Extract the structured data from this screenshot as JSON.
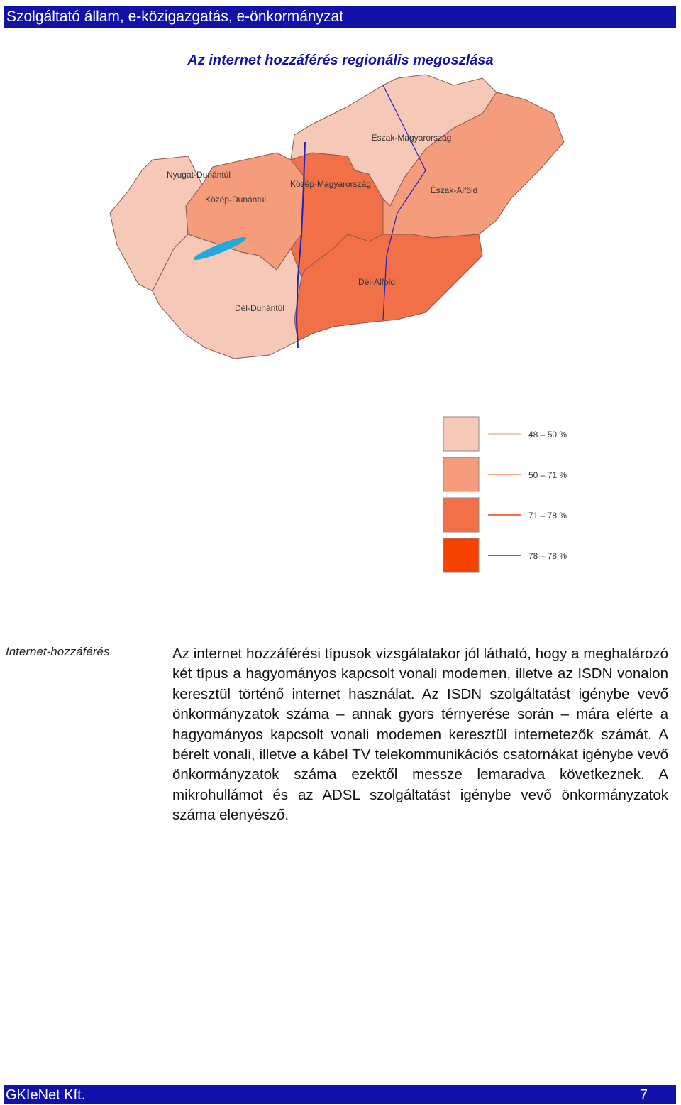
{
  "header": {
    "title": "Szolgáltató állam, e-közigazgatás, e-önkormányzat"
  },
  "map": {
    "title": "Az internet hozzáférés regionális megoszlása",
    "regions": [
      {
        "name": "Nyugat-Dunántúl",
        "color": "#f5c8b8"
      },
      {
        "name": "Közép-Dunántúl",
        "color": "#f59c7c"
      },
      {
        "name": "Dél-Dunántúl",
        "color": "#f5c8b8"
      },
      {
        "name": "Közép-Magyarország",
        "color": "#f27048"
      },
      {
        "name": "Észak-Magyarország",
        "color": "#f5c8b8"
      },
      {
        "name": "Észak-Alföld",
        "color": "#f59c7c"
      },
      {
        "name": "Dél-Alföld",
        "color": "#f27048"
      }
    ],
    "legend": [
      {
        "label": "48 – 50 %",
        "color": "#f5c8b8"
      },
      {
        "label": "50 – 71 %",
        "color": "#f59c7c"
      },
      {
        "label": "71 – 78 %",
        "color": "#f27048"
      },
      {
        "label": "78 – 78 %",
        "color": "#f54200"
      }
    ]
  },
  "section": {
    "label": "Internet-hozzáférés",
    "paragraph": "Az internet hozzáférési típusok vizsgálatakor jól látható, hogy a meghatározó két típus a hagyományos kapcsolt vonali modemen, illetve az ISDN vonalon keresztül történő internet használat. Az ISDN szolgáltatást igénybe vevő önkormányzatok száma – annak gyors térnyerése során – mára elérte a hagyományos kapcsolt vonali modemen keresztül internetezők számát. A bérelt vonali, illetve a kábel TV telekommunikációs csatornákat igénybe vevő önkormányzatok száma ezektől messze lemaradva következnek. A mikrohullámot és az ADSL szolgáltatást igénybe vevő önkormányzatok száma elenyésző."
  },
  "footer": {
    "company": "GKIeNet Kft.",
    "page": "7"
  }
}
